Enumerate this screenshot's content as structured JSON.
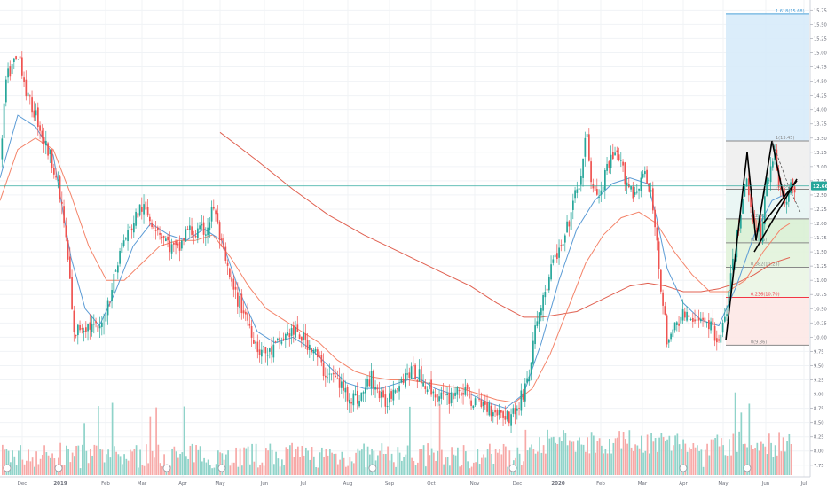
{
  "chart_data": {
    "type": "candlestick",
    "timeframe": "daily",
    "x_labels": [
      "Dec",
      "2019",
      "Feb",
      "Mar",
      "Apr",
      "May",
      "Jun",
      "Jul",
      "Aug",
      "Sep",
      "Oct",
      "Nov",
      "Dec",
      "2020",
      "Feb",
      "Mar",
      "Apr",
      "May",
      "Jun",
      "Jul"
    ],
    "y_ticks": [
      "7.75",
      "8.00",
      "8.25",
      "8.50",
      "8.75",
      "9.00",
      "9.25",
      "9.50",
      "9.75",
      "10.00",
      "10.25",
      "10.50",
      "10.75",
      "11.00",
      "11.25",
      "11.50",
      "11.75",
      "12.00",
      "12.25",
      "12.50",
      "12.75",
      "13.00",
      "13.25",
      "13.50",
      "13.75",
      "14.00",
      "14.25",
      "14.50",
      "14.75",
      "15.00",
      "15.25",
      "15.50",
      "15.75"
    ],
    "ylim": [
      7.7,
      15.88
    ],
    "last_price": "12.66",
    "grid": true,
    "colors": {
      "up": "#26a69a",
      "down": "#ef5350",
      "ma_fast": "#5b9bd5",
      "ma_mid": "#f4846a",
      "ma_slow": "#e06050",
      "vol_up": "#8fd3c9",
      "vol_down": "#f7a9a7",
      "price_line": "#26a69a",
      "pattern_line": "#000000"
    },
    "price_path": [
      [
        0,
        13.1
      ],
      [
        6,
        14.5
      ],
      [
        14,
        14.8
      ],
      [
        22,
        14.9
      ],
      [
        30,
        14.2
      ],
      [
        40,
        13.9
      ],
      [
        50,
        13.4
      ],
      [
        60,
        13.0
      ],
      [
        70,
        12.2
      ],
      [
        78,
        11.0
      ],
      [
        82,
        10.0
      ],
      [
        90,
        10.2
      ],
      [
        100,
        10.2
      ],
      [
        112,
        10.1
      ],
      [
        124,
        10.8
      ],
      [
        136,
        11.6
      ],
      [
        146,
        11.9
      ],
      [
        158,
        12.3
      ],
      [
        168,
        12.1
      ],
      [
        178,
        11.9
      ],
      [
        190,
        11.6
      ],
      [
        200,
        11.5
      ],
      [
        210,
        11.9
      ],
      [
        220,
        11.8
      ],
      [
        232,
        11.9
      ],
      [
        240,
        12.3
      ],
      [
        250,
        11.5
      ],
      [
        262,
        10.8
      ],
      [
        276,
        10.4
      ],
      [
        290,
        9.8
      ],
      [
        302,
        9.7
      ],
      [
        314,
        9.9
      ],
      [
        326,
        10.1
      ],
      [
        340,
        10.0
      ],
      [
        352,
        9.8
      ],
      [
        364,
        9.4
      ],
      [
        376,
        9.3
      ],
      [
        390,
        9.0
      ],
      [
        404,
        8.9
      ],
      [
        418,
        9.3
      ],
      [
        432,
        8.8
      ],
      [
        446,
        9.2
      ],
      [
        460,
        9.4
      ],
      [
        474,
        9.3
      ],
      [
        488,
        9.0
      ],
      [
        502,
        8.9
      ],
      [
        516,
        9.1
      ],
      [
        530,
        8.9
      ],
      [
        546,
        8.8
      ],
      [
        560,
        8.7
      ],
      [
        574,
        8.6
      ],
      [
        584,
        8.8
      ],
      [
        596,
        9.4
      ],
      [
        604,
        10.3
      ],
      [
        614,
        10.8
      ],
      [
        624,
        11.4
      ],
      [
        634,
        11.6
      ],
      [
        644,
        12.3
      ],
      [
        650,
        12.6
      ],
      [
        656,
        13.0
      ],
      [
        660,
        13.6
      ],
      [
        666,
        12.7
      ],
      [
        674,
        12.4
      ],
      [
        684,
        13.0
      ],
      [
        694,
        13.2
      ],
      [
        704,
        12.8
      ],
      [
        714,
        12.5
      ],
      [
        724,
        12.9
      ],
      [
        734,
        12.4
      ],
      [
        740,
        11.6
      ],
      [
        746,
        10.6
      ],
      [
        752,
        9.8
      ],
      [
        762,
        10.3
      ],
      [
        772,
        10.4
      ],
      [
        782,
        10.2
      ],
      [
        792,
        10.4
      ],
      [
        802,
        10.1
      ],
      [
        812,
        10.0
      ],
      [
        820,
        10.7
      ],
      [
        830,
        11.8
      ],
      [
        840,
        12.8
      ],
      [
        848,
        12.1
      ],
      [
        856,
        11.8
      ],
      [
        864,
        12.8
      ],
      [
        872,
        13.3
      ],
      [
        878,
        12.6
      ],
      [
        884,
        12.3
      ],
      [
        890,
        12.6
      ],
      [
        896,
        12.66
      ]
    ],
    "moving_average_fast": [
      [
        0,
        12.8
      ],
      [
        20,
        13.9
      ],
      [
        40,
        13.7
      ],
      [
        60,
        13.2
      ],
      [
        80,
        11.4
      ],
      [
        96,
        10.5
      ],
      [
        112,
        10.2
      ],
      [
        130,
        10.8
      ],
      [
        150,
        11.6
      ],
      [
        170,
        12.0
      ],
      [
        190,
        11.8
      ],
      [
        210,
        11.7
      ],
      [
        230,
        11.9
      ],
      [
        250,
        11.7
      ],
      [
        270,
        10.8
      ],
      [
        290,
        10.1
      ],
      [
        310,
        9.9
      ],
      [
        330,
        10.0
      ],
      [
        350,
        9.8
      ],
      [
        370,
        9.5
      ],
      [
        390,
        9.2
      ],
      [
        410,
        9.1
      ],
      [
        430,
        9.1
      ],
      [
        450,
        9.2
      ],
      [
        470,
        9.3
      ],
      [
        490,
        9.1
      ],
      [
        510,
        9.0
      ],
      [
        530,
        9.0
      ],
      [
        550,
        8.85
      ],
      [
        570,
        8.75
      ],
      [
        590,
        9.0
      ],
      [
        610,
        9.9
      ],
      [
        630,
        11.0
      ],
      [
        650,
        11.9
      ],
      [
        670,
        12.4
      ],
      [
        690,
        12.7
      ],
      [
        710,
        12.8
      ],
      [
        730,
        12.7
      ],
      [
        740,
        12.1
      ],
      [
        752,
        11.2
      ],
      [
        770,
        10.6
      ],
      [
        790,
        10.3
      ],
      [
        810,
        10.2
      ],
      [
        830,
        10.9
      ],
      [
        850,
        11.8
      ],
      [
        870,
        12.4
      ],
      [
        890,
        12.55
      ]
    ],
    "moving_average_mid": [
      [
        0,
        12.4
      ],
      [
        20,
        13.3
      ],
      [
        40,
        13.5
      ],
      [
        60,
        13.3
      ],
      [
        80,
        12.5
      ],
      [
        100,
        11.6
      ],
      [
        120,
        11.0
      ],
      [
        140,
        11.0
      ],
      [
        160,
        11.3
      ],
      [
        180,
        11.6
      ],
      [
        200,
        11.7
      ],
      [
        220,
        11.7
      ],
      [
        240,
        11.8
      ],
      [
        260,
        11.4
      ],
      [
        280,
        10.9
      ],
      [
        300,
        10.5
      ],
      [
        320,
        10.3
      ],
      [
        340,
        10.1
      ],
      [
        360,
        9.9
      ],
      [
        380,
        9.6
      ],
      [
        400,
        9.4
      ],
      [
        420,
        9.3
      ],
      [
        440,
        9.25
      ],
      [
        460,
        9.25
      ],
      [
        480,
        9.2
      ],
      [
        500,
        9.15
      ],
      [
        520,
        9.1
      ],
      [
        540,
        9.0
      ],
      [
        560,
        8.9
      ],
      [
        580,
        8.85
      ],
      [
        600,
        9.1
      ],
      [
        620,
        9.7
      ],
      [
        640,
        10.5
      ],
      [
        660,
        11.3
      ],
      [
        680,
        11.8
      ],
      [
        700,
        12.1
      ],
      [
        720,
        12.2
      ],
      [
        740,
        12.0
      ],
      [
        760,
        11.5
      ],
      [
        780,
        11.1
      ],
      [
        800,
        10.8
      ],
      [
        820,
        10.8
      ],
      [
        840,
        11.0
      ],
      [
        860,
        11.5
      ],
      [
        880,
        11.9
      ],
      [
        890,
        12.0
      ]
    ],
    "moving_average_slow": [
      [
        248,
        13.6
      ],
      [
        290,
        13.1
      ],
      [
        330,
        12.6
      ],
      [
        370,
        12.15
      ],
      [
        410,
        11.8
      ],
      [
        450,
        11.5
      ],
      [
        490,
        11.2
      ],
      [
        530,
        10.9
      ],
      [
        560,
        10.6
      ],
      [
        590,
        10.35
      ],
      [
        610,
        10.35
      ],
      [
        630,
        10.4
      ],
      [
        650,
        10.45
      ],
      [
        670,
        10.6
      ],
      [
        690,
        10.75
      ],
      [
        710,
        10.9
      ],
      [
        730,
        10.95
      ],
      [
        750,
        10.9
      ],
      [
        770,
        10.8
      ],
      [
        790,
        10.8
      ],
      [
        810,
        10.85
      ],
      [
        830,
        10.95
      ],
      [
        850,
        11.1
      ],
      [
        870,
        11.3
      ],
      [
        890,
        11.4
      ]
    ],
    "fibonacci": {
      "low_price": 9.86,
      "high_price": 13.45,
      "levels": [
        {
          "label": "0(9.86)",
          "price": 9.86,
          "color": "#888888"
        },
        {
          "label": "0.236(10.70)",
          "price": 10.7,
          "color": "#f23645"
        },
        {
          "label": "0.382(11.23)",
          "price": 11.23,
          "color": "#888888"
        },
        {
          "label": "(11.66)",
          "price": 11.66,
          "color": "#888888"
        },
        {
          "label": "(12.08)",
          "price": 12.08,
          "color": "#888888"
        },
        {
          "label": "(12.60)",
          "price": 12.6,
          "color": "#888888"
        },
        {
          "label": "1(13.45)",
          "price": 13.45,
          "color": "#888888"
        },
        {
          "label": "1.618(15.68)",
          "price": 15.68,
          "color": "#4aa0d8"
        }
      ]
    },
    "pattern_lines": [
      [
        [
          818,
          9.95
        ],
        [
          842,
          13.25
        ]
      ],
      [
        [
          842,
          13.25
        ],
        [
          852,
          11.7
        ]
      ],
      [
        [
          852,
          11.7
        ],
        [
          870,
          13.45
        ]
      ],
      [
        [
          870,
          13.45
        ],
        [
          884,
          12.4
        ]
      ],
      [
        [
          850,
          11.5
        ],
        [
          898,
          12.78
        ]
      ],
      [
        [
          860,
          12.0
        ],
        [
          898,
          12.75
        ]
      ]
    ],
    "pattern_dashes": [
      [
        [
          870,
          13.45
        ],
        [
          890,
          12.6
        ]
      ],
      [
        [
          890,
          12.6
        ],
        [
          902,
          12.2
        ]
      ]
    ],
    "dividend_markers_x": [
      8,
      66,
      188,
      250,
      420,
      578,
      770,
      842
    ]
  }
}
